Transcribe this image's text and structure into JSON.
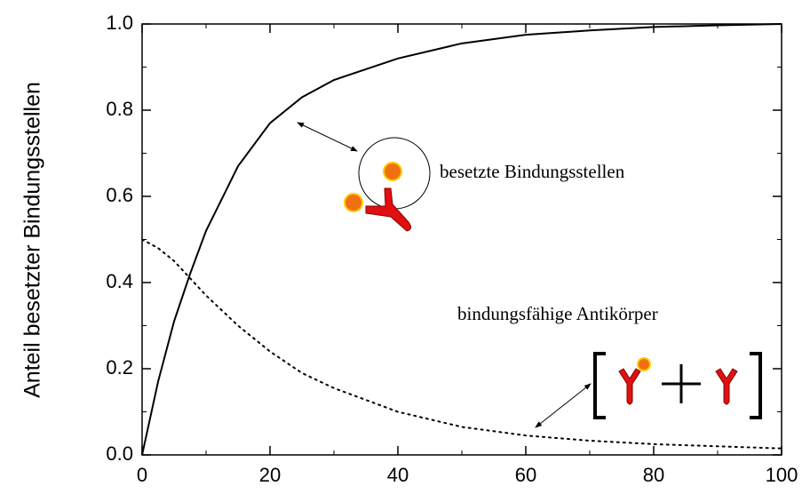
{
  "chart_data": {
    "type": "line",
    "y_label": "Anteil besetzter Bindungsstellen",
    "x": [
      0,
      2.5,
      5,
      7.5,
      10,
      15,
      20,
      25,
      30,
      40,
      50,
      60,
      70,
      80,
      90,
      100
    ],
    "series": [
      {
        "color": "#000000",
        "style": "solid",
        "values": [
          0,
          0.17,
          0.31,
          0.42,
          0.52,
          0.67,
          0.77,
          0.83,
          0.87,
          0.92,
          0.955,
          0.975,
          0.985,
          0.993,
          0.997,
          1.0
        ]
      },
      {
        "color": "#000000",
        "style": "dotted",
        "values": [
          0.5,
          0.48,
          0.45,
          0.41,
          0.37,
          0.3,
          0.24,
          0.19,
          0.155,
          0.1,
          0.065,
          0.045,
          0.033,
          0.025,
          0.02,
          0.015
        ]
      }
    ],
    "xlim": [
      0,
      100
    ],
    "xticks": [
      0,
      20,
      40,
      60,
      80,
      100
    ],
    "xminorticks": [
      10,
      30,
      50,
      70,
      90
    ],
    "ylim": [
      0,
      1
    ],
    "yticks": [
      {
        "value": 0,
        "label": "0.0"
      },
      {
        "value": 0.2,
        "label": "0.2"
      },
      {
        "value": 0.4,
        "label": "0.4"
      },
      {
        "value": 0.6,
        "label": "0.6"
      },
      {
        "value": 0.8,
        "label": "0.8"
      },
      {
        "value": 1,
        "label": "1.0"
      }
    ],
    "yminorticks": [
      0.1,
      0.3,
      0.5,
      0.7,
      0.9
    ],
    "annotations": [
      "besetzte Bindungsstellen",
      "bindungsfähige Antikörper"
    ]
  }
}
